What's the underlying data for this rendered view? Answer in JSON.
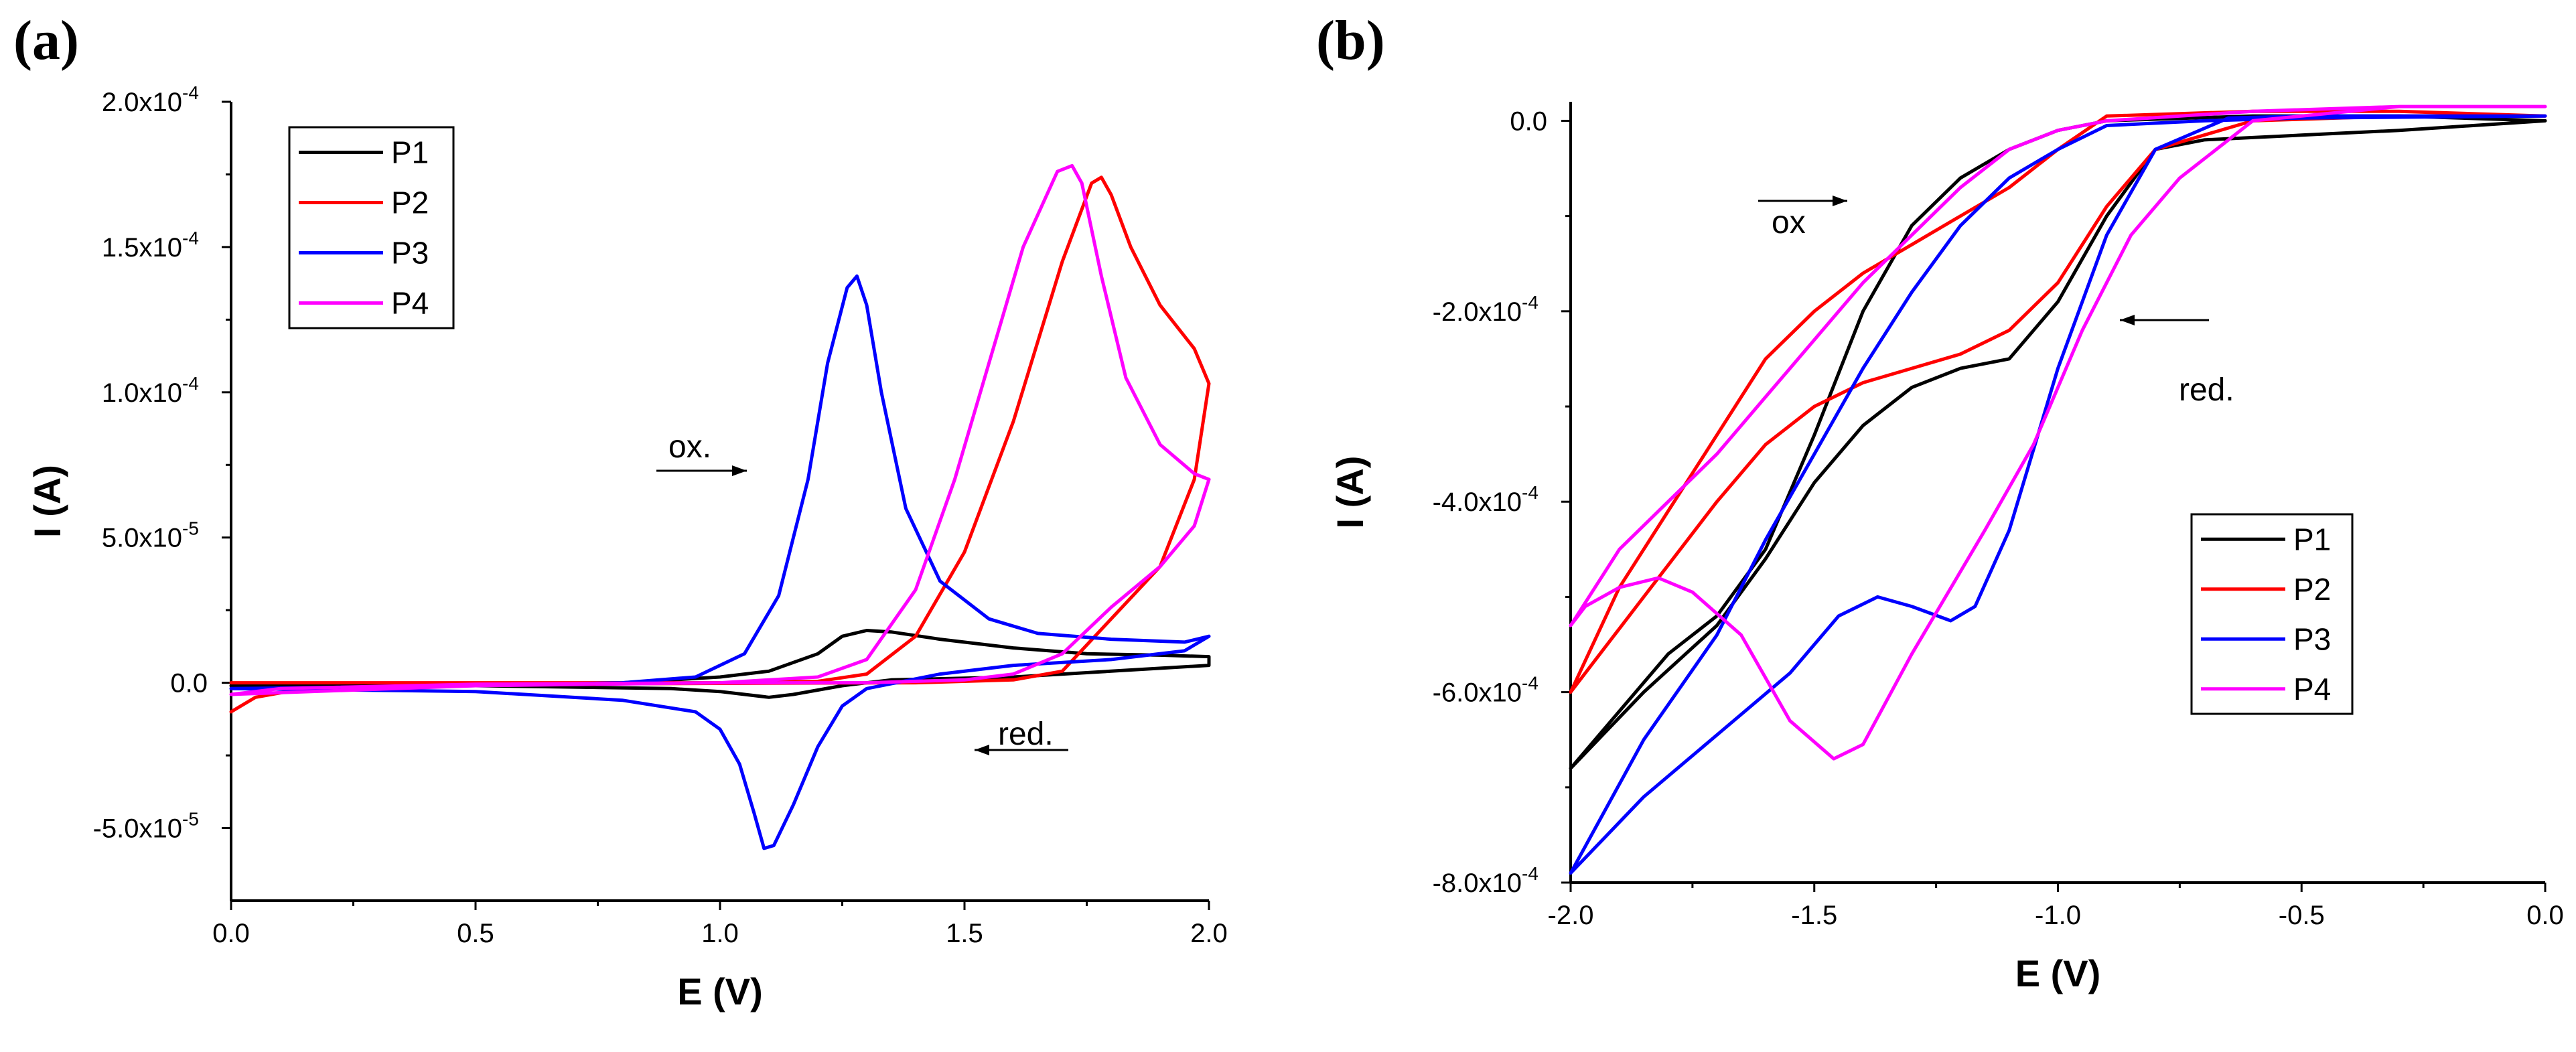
{
  "chart_data": [
    {
      "panel": "(a)",
      "type": "line",
      "xlabel": "E (V)",
      "ylabel": "I (A)",
      "xlim": [
        0.0,
        2.0
      ],
      "ylim": [
        -7.5e-05,
        0.0002
      ],
      "x_ticks": [
        "0.0",
        "0.5",
        "1.0",
        "1.5",
        "2.0"
      ],
      "y_ticks": [
        "-5.0x10",
        "0.0",
        "5.0x10",
        "1.0x10",
        "1.5x10",
        "2.0x10"
      ],
      "y_tick_exponents": [
        "-5",
        "",
        "-5",
        "-4",
        "-4",
        "-4"
      ],
      "legend_position": "top-left",
      "annotations": [
        {
          "text": "ox.",
          "direction": "right",
          "at": [
            1.05,
            7.5e-05
          ]
        },
        {
          "text": "red.",
          "direction": "left",
          "at": [
            1.65,
            -1e-05
          ]
        }
      ],
      "series": [
        {
          "name": "P1",
          "color": "#000000",
          "points": [
            [
              0.0,
              -1e-06
            ],
            [
              0.5,
              -1e-06
            ],
            [
              0.9,
              -2e-06
            ],
            [
              1.0,
              -3e-06
            ],
            [
              1.05,
              -4e-06
            ],
            [
              1.1,
              -5e-06
            ],
            [
              1.15,
              -4e-06
            ],
            [
              1.25,
              -1e-06
            ],
            [
              1.35,
              1e-06
            ],
            [
              1.6,
              2e-06
            ],
            [
              1.8,
              4e-06
            ],
            [
              2.0,
              6e-06
            ],
            [
              2.0,
              9e-06
            ],
            [
              1.9,
              9.5e-06
            ],
            [
              1.75,
              1e-05
            ],
            [
              1.6,
              1.2e-05
            ],
            [
              1.45,
              1.5e-05
            ],
            [
              1.35,
              1.75e-05
            ],
            [
              1.3,
              1.8e-05
            ],
            [
              1.25,
              1.6e-05
            ],
            [
              1.2,
              1e-05
            ],
            [
              1.1,
              4e-06
            ],
            [
              1.0,
              2e-06
            ],
            [
              0.8,
              0
            ],
            [
              0.5,
              -5e-07
            ],
            [
              0.0,
              -1e-06
            ]
          ]
        },
        {
          "name": "P2",
          "color": "#ff0000",
          "points": [
            [
              0.0,
              -1e-05
            ],
            [
              0.05,
              -5e-06
            ],
            [
              0.15,
              -2e-06
            ],
            [
              0.5,
              -5e-07
            ],
            [
              1.0,
              -2e-07
            ],
            [
              1.4,
              0
            ],
            [
              1.6,
              1e-06
            ],
            [
              1.7,
              4e-06
            ],
            [
              1.8,
              2.2e-05
            ],
            [
              1.9,
              4e-05
            ],
            [
              1.97,
              7e-05
            ],
            [
              2.0,
              0.000103
            ],
            [
              1.97,
              0.000115
            ],
            [
              1.9,
              0.00013
            ],
            [
              1.84,
              0.00015
            ],
            [
              1.8,
              0.000168
            ],
            [
              1.78,
              0.000174
            ],
            [
              1.76,
              0.000172
            ],
            [
              1.7,
              0.000145
            ],
            [
              1.6,
              9e-05
            ],
            [
              1.5,
              4.5e-05
            ],
            [
              1.4,
              1.6e-05
            ],
            [
              1.3,
              3e-06
            ],
            [
              1.2,
              5e-07
            ],
            [
              1.0,
              0
            ],
            [
              0.5,
              0
            ],
            [
              0.0,
              0
            ]
          ]
        },
        {
          "name": "P3",
          "color": "#0000ff",
          "points": [
            [
              0.0,
              -2e-06
            ],
            [
              0.5,
              -3e-06
            ],
            [
              0.8,
              -6e-06
            ],
            [
              0.95,
              -1e-05
            ],
            [
              1.0,
              -1.6e-05
            ],
            [
              1.04,
              -2.8e-05
            ],
            [
              1.07,
              -4.5e-05
            ],
            [
              1.09,
              -5.7e-05
            ],
            [
              1.11,
              -5.6e-05
            ],
            [
              1.15,
              -4.2e-05
            ],
            [
              1.2,
              -2.2e-05
            ],
            [
              1.25,
              -8e-06
            ],
            [
              1.3,
              -2e-06
            ],
            [
              1.45,
              3e-06
            ],
            [
              1.6,
              6e-06
            ],
            [
              1.8,
              8e-06
            ],
            [
              1.95,
              1.1e-05
            ],
            [
              2.0,
              1.6e-05
            ],
            [
              1.95,
              1.4e-05
            ],
            [
              1.8,
              1.5e-05
            ],
            [
              1.65,
              1.7e-05
            ],
            [
              1.55,
              2.2e-05
            ],
            [
              1.45,
              3.5e-05
            ],
            [
              1.38,
              6e-05
            ],
            [
              1.33,
              0.0001
            ],
            [
              1.3,
              0.00013
            ],
            [
              1.28,
              0.00014
            ],
            [
              1.26,
              0.000136
            ],
            [
              1.22,
              0.00011
            ],
            [
              1.18,
              7e-05
            ],
            [
              1.12,
              3e-05
            ],
            [
              1.05,
              1e-05
            ],
            [
              0.95,
              2e-06
            ],
            [
              0.8,
              0
            ],
            [
              0.5,
              -1e-06
            ],
            [
              0.0,
              -2e-06
            ]
          ]
        },
        {
          "name": "P4",
          "color": "#ff00ff",
          "points": [
            [
              0.0,
              -4e-06
            ],
            [
              0.1,
              -2e-06
            ],
            [
              0.5,
              -5e-07
            ],
            [
              1.0,
              0
            ],
            [
              1.3,
              0
            ],
            [
              1.5,
              1e-06
            ],
            [
              1.6,
              3e-06
            ],
            [
              1.7,
              1e-05
            ],
            [
              1.8,
              2.6e-05
            ],
            [
              1.9,
              4e-05
            ],
            [
              1.97,
              5.4e-05
            ],
            [
              2.0,
              7e-05
            ],
            [
              1.97,
              7.2e-05
            ],
            [
              1.9,
              8.2e-05
            ],
            [
              1.83,
              0.000105
            ],
            [
              1.78,
              0.00014
            ],
            [
              1.74,
              0.000172
            ],
            [
              1.72,
              0.000178
            ],
            [
              1.69,
              0.000176
            ],
            [
              1.62,
              0.00015
            ],
            [
              1.55,
              0.00011
            ],
            [
              1.48,
              7e-05
            ],
            [
              1.4,
              3.2e-05
            ],
            [
              1.3,
              8e-06
            ],
            [
              1.2,
              2e-06
            ],
            [
              1.0,
              0
            ],
            [
              0.5,
              -1e-06
            ],
            [
              0.0,
              -4e-06
            ]
          ]
        }
      ]
    },
    {
      "panel": "(b)",
      "type": "line",
      "xlabel": "E (V)",
      "ylabel": "I (A)",
      "xlim": [
        -2.0,
        0.0
      ],
      "ylim": [
        -0.0008,
        2e-05
      ],
      "x_ticks": [
        "-2.0",
        "-1.5",
        "-1.0",
        "-0.5",
        "0.0"
      ],
      "y_ticks": [
        "-8.0x10",
        "-6.0x10",
        "-4.0x10",
        "-2.0x10",
        "0.0"
      ],
      "y_tick_exponents": [
        "-4",
        "-4",
        "-4",
        "-4",
        ""
      ],
      "legend_position": "bottom-right",
      "annotations": [
        {
          "text": "ox",
          "direction": "right",
          "at": [
            -1.6,
            -0.0001
          ]
        },
        {
          "text": "red.",
          "direction": "left",
          "at": [
            -0.75,
            -0.00022
          ]
        }
      ],
      "series": [
        {
          "name": "P1",
          "color": "#000000",
          "points": [
            [
              -2.0,
              -0.00068
            ],
            [
              -1.85,
              -0.0006
            ],
            [
              -1.7,
              -0.00053
            ],
            [
              -1.6,
              -0.00046
            ],
            [
              -1.5,
              -0.00038
            ],
            [
              -1.4,
              -0.00032
            ],
            [
              -1.3,
              -0.00028
            ],
            [
              -1.2,
              -0.00026
            ],
            [
              -1.1,
              -0.00025
            ],
            [
              -1.0,
              -0.00019
            ],
            [
              -0.9,
              -0.0001
            ],
            [
              -0.8,
              -3e-05
            ],
            [
              -0.7,
              -2e-05
            ],
            [
              -0.5,
              -1.5e-05
            ],
            [
              -0.3,
              -1e-05
            ],
            [
              0.0,
              0
            ],
            [
              -0.3,
              5e-06
            ],
            [
              -0.6,
              5e-06
            ],
            [
              -0.9,
              0
            ],
            [
              -1.0,
              -1e-05
            ],
            [
              -1.1,
              -3e-05
            ],
            [
              -1.2,
              -6e-05
            ],
            [
              -1.3,
              -0.00011
            ],
            [
              -1.4,
              -0.0002
            ],
            [
              -1.5,
              -0.00033
            ],
            [
              -1.6,
              -0.00045
            ],
            [
              -1.7,
              -0.00052
            ],
            [
              -1.8,
              -0.00056
            ],
            [
              -1.9,
              -0.00062
            ],
            [
              -2.0,
              -0.00068
            ]
          ]
        },
        {
          "name": "P2",
          "color": "#ff0000",
          "points": [
            [
              -2.0,
              -0.0006
            ],
            [
              -1.85,
              -0.0005
            ],
            [
              -1.7,
              -0.0004
            ],
            [
              -1.6,
              -0.00034
            ],
            [
              -1.5,
              -0.0003
            ],
            [
              -1.4,
              -0.000275
            ],
            [
              -1.3,
              -0.00026
            ],
            [
              -1.2,
              -0.000245
            ],
            [
              -1.1,
              -0.00022
            ],
            [
              -1.0,
              -0.00017
            ],
            [
              -0.9,
              -9e-05
            ],
            [
              -0.8,
              -3e-05
            ],
            [
              -0.6,
              0
            ],
            [
              -0.3,
              5e-06
            ],
            [
              0.0,
              5e-06
            ],
            [
              -0.3,
              1e-05
            ],
            [
              -0.6,
              1e-05
            ],
            [
              -0.9,
              5e-06
            ],
            [
              -1.0,
              -3e-05
            ],
            [
              -1.1,
              -7e-05
            ],
            [
              -1.2,
              -0.0001
            ],
            [
              -1.3,
              -0.00013
            ],
            [
              -1.4,
              -0.00016
            ],
            [
              -1.5,
              -0.0002
            ],
            [
              -1.6,
              -0.00025
            ],
            [
              -1.7,
              -0.00033
            ],
            [
              -1.8,
              -0.00041
            ],
            [
              -1.9,
              -0.00049
            ],
            [
              -2.0,
              -0.0006
            ]
          ]
        },
        {
          "name": "P3",
          "color": "#0000ff",
          "points": [
            [
              -2.0,
              -0.00079
            ],
            [
              -1.85,
              -0.00065
            ],
            [
              -1.7,
              -0.00054
            ],
            [
              -1.6,
              -0.00044
            ],
            [
              -1.5,
              -0.00035
            ],
            [
              -1.4,
              -0.00026
            ],
            [
              -1.3,
              -0.00018
            ],
            [
              -1.2,
              -0.00011
            ],
            [
              -1.1,
              -6e-05
            ],
            [
              -1.0,
              -3e-05
            ],
            [
              -0.9,
              -5e-06
            ],
            [
              -0.7,
              0
            ],
            [
              -0.5,
              3e-06
            ],
            [
              0.0,
              5e-06
            ],
            [
              -0.5,
              5e-06
            ],
            [
              -0.65,
              3e-06
            ],
            [
              -0.8,
              -3e-05
            ],
            [
              -0.9,
              -0.00012
            ],
            [
              -1.0,
              -0.00026
            ],
            [
              -1.1,
              -0.00043
            ],
            [
              -1.17,
              -0.00051
            ],
            [
              -1.22,
              -0.000525
            ],
            [
              -1.3,
              -0.00051
            ],
            [
              -1.37,
              -0.0005
            ],
            [
              -1.45,
              -0.00052
            ],
            [
              -1.55,
              -0.00058
            ],
            [
              -1.7,
              -0.000645
            ],
            [
              -1.85,
              -0.00071
            ],
            [
              -2.0,
              -0.00079
            ]
          ]
        },
        {
          "name": "P4",
          "color": "#ff00ff",
          "points": [
            [
              -2.0,
              -0.00053
            ],
            [
              -1.9,
              -0.00045
            ],
            [
              -1.8,
              -0.0004
            ],
            [
              -1.7,
              -0.00035
            ],
            [
              -1.6,
              -0.00029
            ],
            [
              -1.5,
              -0.00023
            ],
            [
              -1.4,
              -0.00017
            ],
            [
              -1.3,
              -0.00012
            ],
            [
              -1.2,
              -7e-05
            ],
            [
              -1.1,
              -3e-05
            ],
            [
              -1.0,
              -1e-05
            ],
            [
              -0.9,
              0
            ],
            [
              -0.6,
              1e-05
            ],
            [
              -0.3,
              1.5e-05
            ],
            [
              0.0,
              1.5e-05
            ],
            [
              -0.3,
              1.5e-05
            ],
            [
              -0.6,
              0
            ],
            [
              -0.75,
              -6e-05
            ],
            [
              -0.85,
              -0.00012
            ],
            [
              -0.95,
              -0.00022
            ],
            [
              -1.05,
              -0.00034
            ],
            [
              -1.15,
              -0.00043
            ],
            [
              -1.3,
              -0.00056
            ],
            [
              -1.4,
              -0.000655
            ],
            [
              -1.46,
              -0.00067
            ],
            [
              -1.55,
              -0.00063
            ],
            [
              -1.65,
              -0.00054
            ],
            [
              -1.75,
              -0.000495
            ],
            [
              -1.82,
              -0.00048
            ],
            [
              -1.9,
              -0.00049
            ],
            [
              -1.97,
              -0.00051
            ],
            [
              -2.0,
              -0.00053
            ]
          ]
        }
      ]
    }
  ]
}
